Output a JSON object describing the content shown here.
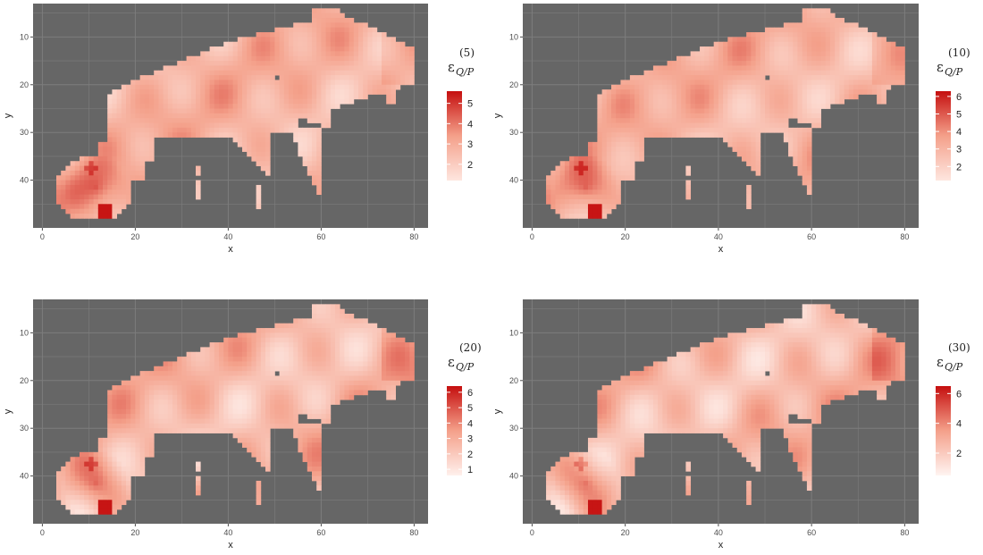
{
  "chart_data": [
    {
      "type": "heatmap",
      "title": "",
      "xlabel": "x",
      "ylabel": "y",
      "xlim": [
        -2,
        83
      ],
      "ylim": [
        50,
        3
      ],
      "x_ticks": [
        0,
        20,
        40,
        60,
        80
      ],
      "y_ticks": [
        10,
        20,
        30,
        40
      ],
      "legend": {
        "symbol": "ε",
        "superscript": "(5)",
        "subscript": "Q/P",
        "placement": "right",
        "range": [
          1.2,
          5.6
        ],
        "ticks": [
          2,
          3,
          4,
          5
        ]
      },
      "colors": {
        "low": "#fee6df",
        "mid": "#f4a08a",
        "high": "#c50f0f"
      }
    },
    {
      "type": "heatmap",
      "title": "",
      "xlabel": "x",
      "ylabel": "y",
      "xlim": [
        -2,
        83
      ],
      "ylim": [
        50,
        3
      ],
      "x_ticks": [
        0,
        20,
        40,
        60,
        80
      ],
      "y_ticks": [
        10,
        20,
        30,
        40
      ],
      "legend": {
        "symbol": "ε",
        "superscript": "(10)",
        "subscript": "Q/P",
        "placement": "right",
        "range": [
          1.2,
          6.3
        ],
        "ticks": [
          2,
          3,
          4,
          5,
          6
        ]
      },
      "colors": {
        "low": "#fee6df",
        "mid": "#f4a08a",
        "high": "#c50f0f"
      }
    },
    {
      "type": "heatmap",
      "title": "",
      "xlabel": "x",
      "ylabel": "y",
      "xlim": [
        -2,
        83
      ],
      "ylim": [
        50,
        3
      ],
      "x_ticks": [
        0,
        20,
        40,
        60,
        80
      ],
      "y_ticks": [
        10,
        20,
        30,
        40
      ],
      "legend": {
        "symbol": "ε",
        "superscript": "(20)",
        "subscript": "Q/P",
        "placement": "right",
        "range": [
          0.6,
          6.4
        ],
        "ticks": [
          1,
          2,
          3,
          4,
          5,
          6
        ]
      },
      "colors": {
        "low": "#fff0ec",
        "mid": "#f4a08a",
        "high": "#c50f0f"
      }
    },
    {
      "type": "heatmap",
      "title": "",
      "xlabel": "x",
      "ylabel": "y",
      "xlim": [
        -2,
        83
      ],
      "ylim": [
        50,
        3
      ],
      "x_ticks": [
        0,
        20,
        40,
        60,
        80
      ],
      "y_ticks": [
        10,
        20,
        30,
        40
      ],
      "legend": {
        "symbol": "ε",
        "superscript": "(30)",
        "subscript": "Q/P",
        "placement": "right",
        "range": [
          0.5,
          6.5
        ],
        "ticks": [
          2,
          4,
          6
        ]
      },
      "colors": {
        "low": "#fff4f1",
        "mid": "#f4a08a",
        "high": "#c50f0f"
      }
    }
  ],
  "theme": {
    "panel_background": "#666666",
    "grid_color": "#7d7d7d"
  }
}
